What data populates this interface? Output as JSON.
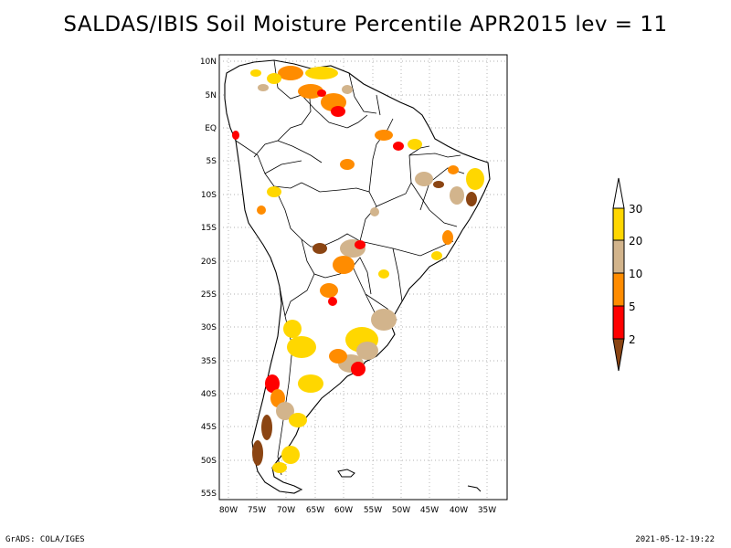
{
  "title": "SALDAS/IBIS Soil Moisture Percentile APR2015 lev = 11",
  "footer": {
    "left": "GrADS: COLA/IGES",
    "right": "2021-05-12-19:22"
  },
  "map": {
    "lat_labels": [
      "10N",
      "5N",
      "EQ",
      "5S",
      "10S",
      "15S",
      "20S",
      "25S",
      "30S",
      "35S",
      "40S",
      "45S",
      "50S",
      "55S"
    ],
    "lon_labels": [
      "80W",
      "75W",
      "70W",
      "65W",
      "60W",
      "55W",
      "50W",
      "45W",
      "40W",
      "35W"
    ],
    "lon_range": [
      -81,
      -33
    ],
    "lat_range": [
      -56,
      13
    ]
  },
  "colorbar": {
    "labels": [
      "2",
      "5",
      "10",
      "20",
      "30"
    ],
    "colors": {
      "below_2": "#8B4513",
      "2_5": "#FF0000",
      "5_10": "#FF8C00",
      "10_20": "#D2B48C",
      "20_30": "#FFD700",
      "above_30": "#FFFFFF"
    }
  }
}
